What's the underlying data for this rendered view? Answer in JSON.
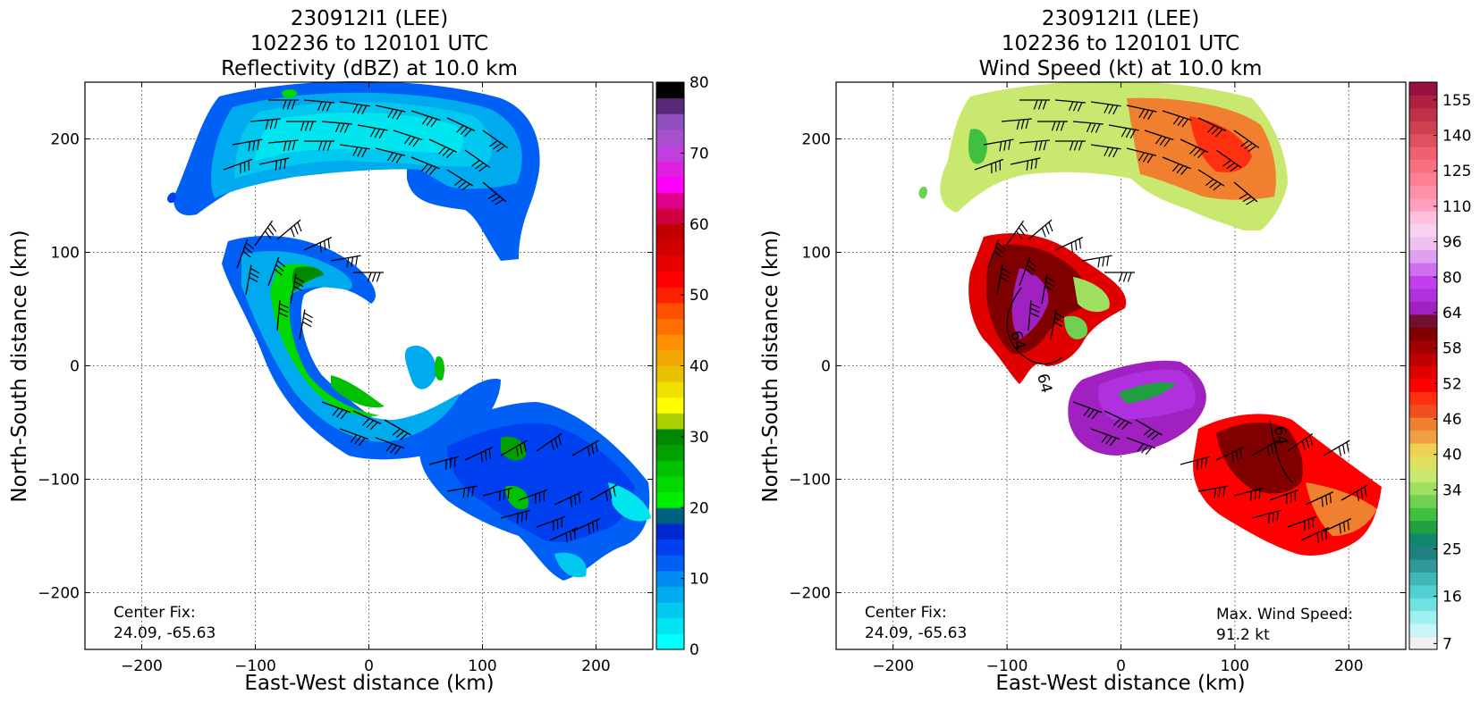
{
  "colors": {
    "reflectivity_scale": [
      "#00ffff",
      "#00e5f0",
      "#00c8ee",
      "#00aaee",
      "#008cf0",
      "#0060f5",
      "#0040f0",
      "#0028d0",
      "#006080",
      "#00f000",
      "#00d800",
      "#00c000",
      "#00a000",
      "#008800",
      "#a8d000",
      "#ffff00",
      "#f0e000",
      "#e8c000",
      "#f0a800",
      "#ff9000",
      "#ff7000",
      "#ff5000",
      "#ff2000",
      "#ff0000",
      "#e80000",
      "#d00000",
      "#c00000",
      "#d00040",
      "#e0008c",
      "#ff00ff",
      "#e020e0",
      "#c040e0",
      "#a850d0",
      "#9050c0",
      "#5a2a7a",
      "#000000"
    ],
    "wind_scale": [
      "#f0f0f0",
      "#c8f5f5",
      "#a0f0f0",
      "#70e0e0",
      "#50d0d0",
      "#40b8b8",
      "#309898",
      "#208080",
      "#108870",
      "#20a040",
      "#40c040",
      "#70d050",
      "#a0e060",
      "#c8e870",
      "#e0e060",
      "#f0d050",
      "#f0a040",
      "#f08030",
      "#f05020",
      "#ff3010",
      "#ff0000",
      "#e00000",
      "#c00000",
      "#a00000",
      "#800000",
      "#701030",
      "#a020c0",
      "#b030e0",
      "#c040f0",
      "#d070f0",
      "#e0a0f0",
      "#f0c0f0",
      "#f8d0f0",
      "#ffc0e0",
      "#ffa0c0",
      "#ff90a8",
      "#ff8090",
      "#f87080",
      "#f06070",
      "#e05060",
      "#d04050",
      "#c03048",
      "#b02040",
      "#981040"
    ]
  },
  "chart_data": [
    {
      "type": "heatmap",
      "title": "230912I1 (LEE)\n102236 to 120101 UTC\nReflectivity (dBZ) at 10.0 km",
      "title_lines": [
        "230912I1 (LEE)",
        "102236 to 120101 UTC",
        "Reflectivity (dBZ) at 10.0 km"
      ],
      "xlabel": "East-West distance (km)",
      "ylabel": "North-South distance (km)",
      "xlim": [
        -250,
        250
      ],
      "ylim": [
        -250,
        250
      ],
      "x_ticks": [
        -200,
        -100,
        0,
        100,
        200
      ],
      "y_ticks": [
        -200,
        -100,
        0,
        100,
        200
      ],
      "x_tick_labels": [
        "−200",
        "−100",
        "0",
        "100",
        "200"
      ],
      "y_tick_labels": [
        "−200",
        "−100",
        "0",
        "100",
        "200"
      ],
      "grid": true,
      "colorbar": {
        "label": "Reflectivity (dBZ)",
        "range": [
          0,
          80
        ],
        "ticks": [
          0,
          10,
          20,
          30,
          40,
          50,
          60,
          70,
          80
        ],
        "tick_labels": [
          "0",
          "10",
          "20",
          "30",
          "40",
          "50",
          "60",
          "70",
          "80"
        ]
      },
      "annotations": {
        "center_fix_label": "Center Fix:",
        "center_fix_value": "24.09, -65.63"
      }
    },
    {
      "type": "heatmap",
      "title": "230912I1 (LEE)\n102236 to 120101 UTC\nWind Speed (kt) at 10.0 km",
      "title_lines": [
        "230912I1 (LEE)",
        "102236 to 120101 UTC",
        "Wind Speed (kt) at 10.0 km"
      ],
      "xlabel": "East-West distance (km)",
      "ylabel": "North-South distance (km)",
      "xlim": [
        -250,
        250
      ],
      "ylim": [
        -250,
        250
      ],
      "x_ticks": [
        -200,
        -100,
        0,
        100,
        200
      ],
      "y_ticks": [
        -200,
        -100,
        0,
        100,
        200
      ],
      "x_tick_labels": [
        "−200",
        "−100",
        "0",
        "100",
        "200"
      ],
      "y_tick_labels": [
        "−200",
        "−100",
        "0",
        "100",
        "200"
      ],
      "grid": true,
      "colorbar": {
        "label": "Wind Speed (kt)",
        "tick_labels": [
          "7",
          "16",
          "25",
          "34",
          "40",
          "46",
          "52",
          "58",
          "64",
          "80",
          "96",
          "110",
          "125",
          "140",
          "155"
        ],
        "tick_positions_bottom_up": [
          0.5,
          4.5,
          8.5,
          13.5,
          16.5,
          19.5,
          22.5,
          25.5,
          28.5,
          31.5,
          34.5,
          37.5,
          40.5,
          43.5,
          46.5
        ],
        "n_bins": 48
      },
      "contour_label": "64",
      "annotations": {
        "center_fix_label": "Center Fix:",
        "center_fix_value": "24.09, -65.63",
        "max_wind_label": "Max. Wind Speed:",
        "max_wind_value": "91.2 kt"
      }
    }
  ]
}
